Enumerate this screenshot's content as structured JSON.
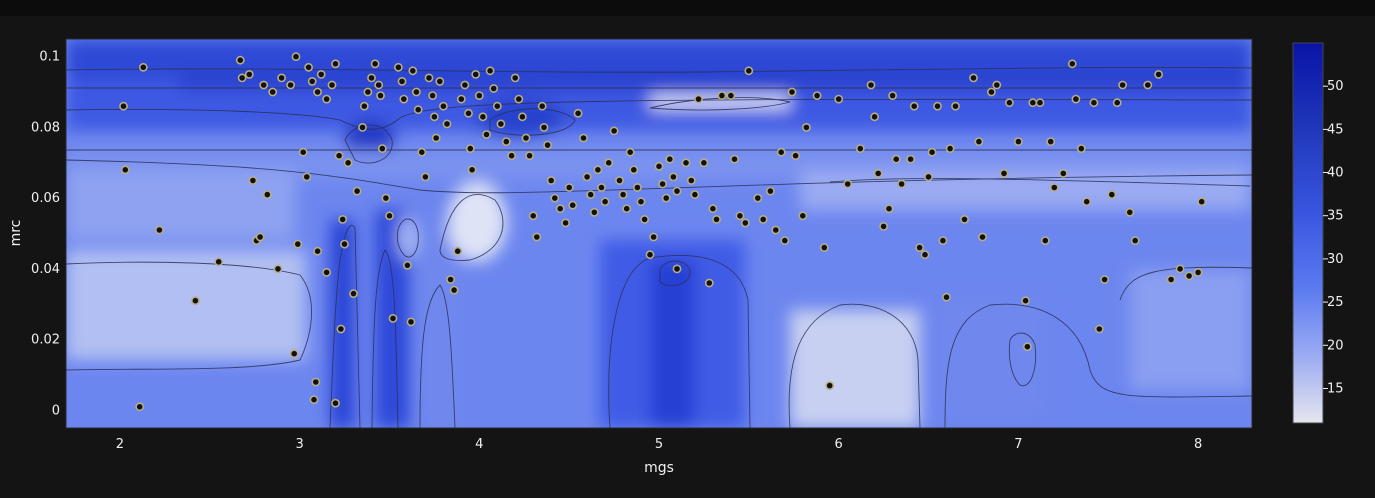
{
  "chart_data": {
    "type": "scatter",
    "background": "contour",
    "xlabel": "mgs",
    "ylabel": "mrc",
    "xlim": [
      1.7,
      8.3
    ],
    "ylim": [
      -0.005,
      0.105
    ],
    "x_ticks": [
      2,
      3,
      4,
      5,
      6,
      7,
      8
    ],
    "y_ticks": [
      0,
      0.02,
      0.04,
      0.06,
      0.08,
      0.1
    ],
    "y_tick_labels": [
      "0",
      "0.02",
      "0.04",
      "0.06",
      "0.08",
      "0.1"
    ],
    "colorbar": {
      "range": [
        11,
        55
      ],
      "ticks": [
        15,
        20,
        25,
        30,
        35,
        40,
        45,
        50
      ],
      "colorscale": [
        "#e6e6ee",
        "#9aaaf3",
        "#5a79f0",
        "#3a56e0",
        "#1e36b9",
        "#0a14a8"
      ]
    },
    "marker_color": "#111111",
    "marker_outline": "#b7ad86",
    "points": [
      [
        2.13,
        0.097
      ],
      [
        2.02,
        0.086
      ],
      [
        2.03,
        0.068
      ],
      [
        2.22,
        0.051
      ],
      [
        2.42,
        0.031
      ],
      [
        2.55,
        0.042
      ],
      [
        2.11,
        0.001
      ],
      [
        2.67,
        0.099
      ],
      [
        2.68,
        0.094
      ],
      [
        2.74,
        0.065
      ],
      [
        2.76,
        0.048
      ],
      [
        2.78,
        0.049
      ],
      [
        2.82,
        0.061
      ],
      [
        2.88,
        0.04
      ],
      [
        2.72,
        0.095
      ],
      [
        2.8,
        0.092
      ],
      [
        2.85,
        0.09
      ],
      [
        2.9,
        0.094
      ],
      [
        2.95,
        0.092
      ],
      [
        2.98,
        0.1
      ],
      [
        2.99,
        0.047
      ],
      [
        3.02,
        0.073
      ],
      [
        3.04,
        0.066
      ],
      [
        3.05,
        0.097
      ],
      [
        3.07,
        0.093
      ],
      [
        3.1,
        0.09
      ],
      [
        3.12,
        0.095
      ],
      [
        3.15,
        0.088
      ],
      [
        3.18,
        0.092
      ],
      [
        3.2,
        0.098
      ],
      [
        3.22,
        0.072
      ],
      [
        3.24,
        0.054
      ],
      [
        3.25,
        0.047
      ],
      [
        3.23,
        0.023
      ],
      [
        3.2,
        0.002
      ],
      [
        3.08,
        0.003
      ],
      [
        3.09,
        0.008
      ],
      [
        2.97,
        0.016
      ],
      [
        3.1,
        0.045
      ],
      [
        3.15,
        0.039
      ],
      [
        3.27,
        0.07
      ],
      [
        3.3,
        0.033
      ],
      [
        3.32,
        0.062
      ],
      [
        3.35,
        0.08
      ],
      [
        3.36,
        0.086
      ],
      [
        3.38,
        0.09
      ],
      [
        3.4,
        0.094
      ],
      [
        3.42,
        0.098
      ],
      [
        3.44,
        0.092
      ],
      [
        3.45,
        0.089
      ],
      [
        3.46,
        0.074
      ],
      [
        3.48,
        0.06
      ],
      [
        3.5,
        0.055
      ],
      [
        3.52,
        0.026
      ],
      [
        3.55,
        0.097
      ],
      [
        3.57,
        0.093
      ],
      [
        3.58,
        0.088
      ],
      [
        3.6,
        0.041
      ],
      [
        3.62,
        0.025
      ],
      [
        3.63,
        0.096
      ],
      [
        3.65,
        0.09
      ],
      [
        3.66,
        0.085
      ],
      [
        3.68,
        0.073
      ],
      [
        3.7,
        0.066
      ],
      [
        3.72,
        0.094
      ],
      [
        3.74,
        0.089
      ],
      [
        3.75,
        0.083
      ],
      [
        3.76,
        0.077
      ],
      [
        3.78,
        0.093
      ],
      [
        3.8,
        0.086
      ],
      [
        3.82,
        0.081
      ],
      [
        3.84,
        0.037
      ],
      [
        3.86,
        0.034
      ],
      [
        3.88,
        0.045
      ],
      [
        3.9,
        0.088
      ],
      [
        3.92,
        0.092
      ],
      [
        3.94,
        0.084
      ],
      [
        3.95,
        0.074
      ],
      [
        3.96,
        0.068
      ],
      [
        3.98,
        0.095
      ],
      [
        4.0,
        0.089
      ],
      [
        4.02,
        0.083
      ],
      [
        4.04,
        0.078
      ],
      [
        4.06,
        0.096
      ],
      [
        4.08,
        0.091
      ],
      [
        4.1,
        0.086
      ],
      [
        4.12,
        0.081
      ],
      [
        4.15,
        0.076
      ],
      [
        4.18,
        0.072
      ],
      [
        4.2,
        0.094
      ],
      [
        4.22,
        0.088
      ],
      [
        4.24,
        0.083
      ],
      [
        4.26,
        0.077
      ],
      [
        4.28,
        0.072
      ],
      [
        4.3,
        0.055
      ],
      [
        4.32,
        0.049
      ],
      [
        4.35,
        0.086
      ],
      [
        4.36,
        0.08
      ],
      [
        4.38,
        0.075
      ],
      [
        4.4,
        0.065
      ],
      [
        4.42,
        0.06
      ],
      [
        4.45,
        0.057
      ],
      [
        4.48,
        0.053
      ],
      [
        4.5,
        0.063
      ],
      [
        4.52,
        0.058
      ],
      [
        4.55,
        0.084
      ],
      [
        4.58,
        0.077
      ],
      [
        4.6,
        0.066
      ],
      [
        4.62,
        0.061
      ],
      [
        4.64,
        0.056
      ],
      [
        4.66,
        0.068
      ],
      [
        4.68,
        0.063
      ],
      [
        4.7,
        0.059
      ],
      [
        4.72,
        0.07
      ],
      [
        4.75,
        0.079
      ],
      [
        4.78,
        0.065
      ],
      [
        4.8,
        0.061
      ],
      [
        4.82,
        0.057
      ],
      [
        4.84,
        0.073
      ],
      [
        4.86,
        0.068
      ],
      [
        4.88,
        0.063
      ],
      [
        4.9,
        0.059
      ],
      [
        4.92,
        0.054
      ],
      [
        4.95,
        0.044
      ],
      [
        4.97,
        0.049
      ],
      [
        5.0,
        0.069
      ],
      [
        5.02,
        0.064
      ],
      [
        5.04,
        0.06
      ],
      [
        5.06,
        0.071
      ],
      [
        5.08,
        0.066
      ],
      [
        5.1,
        0.062
      ],
      [
        5.1,
        0.04
      ],
      [
        5.15,
        0.07
      ],
      [
        5.18,
        0.065
      ],
      [
        5.2,
        0.061
      ],
      [
        5.22,
        0.088
      ],
      [
        5.25,
        0.07
      ],
      [
        5.28,
        0.036
      ],
      [
        5.3,
        0.057
      ],
      [
        5.32,
        0.054
      ],
      [
        5.35,
        0.089
      ],
      [
        5.4,
        0.089
      ],
      [
        5.42,
        0.071
      ],
      [
        5.45,
        0.055
      ],
      [
        5.48,
        0.053
      ],
      [
        5.5,
        0.096
      ],
      [
        5.55,
        0.06
      ],
      [
        5.58,
        0.054
      ],
      [
        5.62,
        0.062
      ],
      [
        5.65,
        0.051
      ],
      [
        5.68,
        0.073
      ],
      [
        5.7,
        0.048
      ],
      [
        5.74,
        0.09
      ],
      [
        5.76,
        0.072
      ],
      [
        5.8,
        0.055
      ],
      [
        5.82,
        0.08
      ],
      [
        5.88,
        0.089
      ],
      [
        5.92,
        0.046
      ],
      [
        5.95,
        0.007
      ],
      [
        6.0,
        0.088
      ],
      [
        6.05,
        0.064
      ],
      [
        6.12,
        0.074
      ],
      [
        6.18,
        0.092
      ],
      [
        6.2,
        0.083
      ],
      [
        6.22,
        0.067
      ],
      [
        6.25,
        0.052
      ],
      [
        6.28,
        0.057
      ],
      [
        6.3,
        0.089
      ],
      [
        6.32,
        0.071
      ],
      [
        6.35,
        0.064
      ],
      [
        6.4,
        0.071
      ],
      [
        6.42,
        0.086
      ],
      [
        6.45,
        0.046
      ],
      [
        6.48,
        0.044
      ],
      [
        6.5,
        0.066
      ],
      [
        6.52,
        0.073
      ],
      [
        6.55,
        0.086
      ],
      [
        6.58,
        0.048
      ],
      [
        6.6,
        0.032
      ],
      [
        6.62,
        0.074
      ],
      [
        6.65,
        0.086
      ],
      [
        6.7,
        0.054
      ],
      [
        6.75,
        0.094
      ],
      [
        6.78,
        0.076
      ],
      [
        6.8,
        0.049
      ],
      [
        6.85,
        0.09
      ],
      [
        6.88,
        0.092
      ],
      [
        6.92,
        0.067
      ],
      [
        6.95,
        0.087
      ],
      [
        7.0,
        0.076
      ],
      [
        7.04,
        0.031
      ],
      [
        7.05,
        0.018
      ],
      [
        7.08,
        0.087
      ],
      [
        7.12,
        0.087
      ],
      [
        7.15,
        0.048
      ],
      [
        7.18,
        0.076
      ],
      [
        7.2,
        0.063
      ],
      [
        7.25,
        0.067
      ],
      [
        7.3,
        0.098
      ],
      [
        7.32,
        0.088
      ],
      [
        7.35,
        0.074
      ],
      [
        7.38,
        0.059
      ],
      [
        7.42,
        0.087
      ],
      [
        7.45,
        0.023
      ],
      [
        7.48,
        0.037
      ],
      [
        7.52,
        0.061
      ],
      [
        7.55,
        0.087
      ],
      [
        7.58,
        0.092
      ],
      [
        7.62,
        0.056
      ],
      [
        7.65,
        0.048
      ],
      [
        7.72,
        0.092
      ],
      [
        7.78,
        0.095
      ],
      [
        7.85,
        0.037
      ],
      [
        7.9,
        0.04
      ],
      [
        7.95,
        0.038
      ],
      [
        8.0,
        0.039
      ],
      [
        8.02,
        0.059
      ]
    ]
  }
}
